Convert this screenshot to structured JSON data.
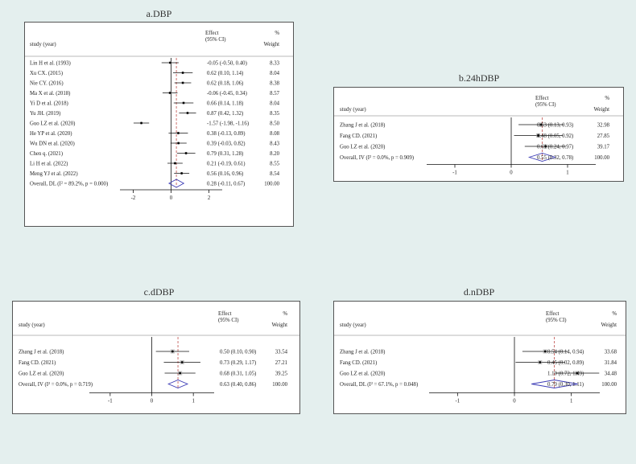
{
  "colors": {
    "background": "#e4efee",
    "plot_bg": "#ffffff",
    "ref_line": "#c0504d",
    "diamond": "#3b3bb5",
    "ci_line": "#111111"
  },
  "chart_data": [
    {
      "type": "forest",
      "title": "a.DBP",
      "header": {
        "study": "study (year)",
        "effect": "Effect",
        "ci": "(95% CI)",
        "pct": "%",
        "weight": "Weight"
      },
      "xticks": [
        -2,
        0,
        2
      ],
      "xlim": [
        -2.7,
        2.7
      ],
      "null_line": 0,
      "pooled_line": 0.28,
      "studies": [
        {
          "label": "Lin H et al. (1993)",
          "effect": -0.05,
          "lo": -0.5,
          "hi": 0.4,
          "ci_text": "-0.05 (-0.50, 0.40)",
          "weight": "8.33"
        },
        {
          "label": "Xu CX. (2015)",
          "effect": 0.62,
          "lo": 0.1,
          "hi": 1.14,
          "ci_text": "0.62 (0.10, 1.14)",
          "weight": "8.04"
        },
        {
          "label": "Nie CY. (2016)",
          "effect": 0.62,
          "lo": 0.18,
          "hi": 1.06,
          "ci_text": "0.62 (0.18, 1.06)",
          "weight": "8.38"
        },
        {
          "label": "Ma X et al. (2018)",
          "effect": -0.06,
          "lo": -0.45,
          "hi": 0.34,
          "ci_text": "-0.06 (-0.45, 0.34)",
          "weight": "8.57"
        },
        {
          "label": "Yi D et al. (2018)",
          "effect": 0.66,
          "lo": 0.14,
          "hi": 1.18,
          "ci_text": "0.66 (0.14, 1.18)",
          "weight": "8.04"
        },
        {
          "label": "Yu JH. (2019)",
          "effect": 0.87,
          "lo": 0.42,
          "hi": 1.32,
          "ci_text": "0.87 (0.42, 1.32)",
          "weight": "8.35"
        },
        {
          "label": "Guo LZ et al. (2020)",
          "effect": -1.57,
          "lo": -1.98,
          "hi": -1.16,
          "ci_text": "-1.57 (-1.98, -1.16)",
          "weight": "8.50"
        },
        {
          "label": "He YP et al. (2020)",
          "effect": 0.38,
          "lo": -0.13,
          "hi": 0.89,
          "ci_text": "0.38 (-0.13, 0.89)",
          "weight": "8.08"
        },
        {
          "label": "Wu DN et al. (2020)",
          "effect": 0.39,
          "lo": -0.03,
          "hi": 0.82,
          "ci_text": "0.39 (-0.03, 0.82)",
          "weight": "8.43"
        },
        {
          "label": "Chen q. (2021)",
          "effect": 0.79,
          "lo": 0.31,
          "hi": 1.28,
          "ci_text": "0.79 (0.31, 1.28)",
          "weight": "8.20"
        },
        {
          "label": "Li H et al. (2022)",
          "effect": 0.21,
          "lo": -0.19,
          "hi": 0.61,
          "ci_text": "0.21 (-0.19, 0.61)",
          "weight": "8.55"
        },
        {
          "label": "Meng YJ et al. (2022)",
          "effect": 0.56,
          "lo": 0.16,
          "hi": 0.96,
          "ci_text": "0.56 (0.16, 0.96)",
          "weight": "8.54"
        }
      ],
      "overall": {
        "label": "Overall, DL (I² = 89.2%, p = 0.000)",
        "effect": 0.28,
        "lo": -0.11,
        "hi": 0.67,
        "ci_text": "0.28 (-0.11, 0.67)",
        "weight": "100.00"
      }
    },
    {
      "type": "forest",
      "title": "b.24hDBP",
      "header": {
        "study": "study (year)",
        "effect": "Effect",
        "ci": "(95% CI)",
        "pct": "%",
        "weight": "Weight"
      },
      "xticks": [
        -1,
        0,
        1
      ],
      "xlim": [
        -1.5,
        1.5
      ],
      "null_line": 0,
      "pooled_line": 0.55,
      "studies": [
        {
          "label": "Zhang J et al. (2018)",
          "effect": 0.53,
          "lo": 0.13,
          "hi": 0.93,
          "ci_text": "0.53 (0.13, 0.93)",
          "weight": "32.98"
        },
        {
          "label": "Fang CD. (2021)",
          "effect": 0.48,
          "lo": 0.05,
          "hi": 0.92,
          "ci_text": "0.48 (0.05, 0.92)",
          "weight": "27.85"
        },
        {
          "label": "Guo LZ et al. (2020)",
          "effect": 0.61,
          "lo": 0.24,
          "hi": 0.97,
          "ci_text": "0.61 (0.24, 0.97)",
          "weight": "39.17"
        }
      ],
      "overall": {
        "label": "Overall, IV (I² = 0.0%, p = 0.909)",
        "effect": 0.55,
        "lo": 0.32,
        "hi": 0.78,
        "ci_text": "0.55 (0.32, 0.78)",
        "weight": "100.00"
      }
    },
    {
      "type": "forest",
      "title": "c.dDBP",
      "header": {
        "study": "study (year)",
        "effect": "Effect",
        "ci": "(95% CI)",
        "pct": "%",
        "weight": "Weight"
      },
      "xticks": [
        -1,
        0,
        1
      ],
      "xlim": [
        -1.5,
        1.5
      ],
      "null_line": 0,
      "pooled_line": 0.63,
      "studies": [
        {
          "label": "Zhang J et al. (2018)",
          "effect": 0.5,
          "lo": 0.1,
          "hi": 0.9,
          "ci_text": "0.50 (0.10, 0.90)",
          "weight": "33.54"
        },
        {
          "label": "Fang CD. (2021)",
          "effect": 0.73,
          "lo": 0.29,
          "hi": 1.17,
          "ci_text": "0.73 (0.29, 1.17)",
          "weight": "27.21"
        },
        {
          "label": "Guo LZ et al. (2020)",
          "effect": 0.68,
          "lo": 0.31,
          "hi": 1.05,
          "ci_text": "0.68 (0.31, 1.05)",
          "weight": "39.25"
        }
      ],
      "overall": {
        "label": "Overall, IV (I² = 0.0%, p = 0.719)",
        "effect": 0.63,
        "lo": 0.4,
        "hi": 0.86,
        "ci_text": "0.63 (0.40, 0.86)",
        "weight": "100.00"
      }
    },
    {
      "type": "forest",
      "title": "d.nDBP",
      "header": {
        "study": "study (year)",
        "effect": "Effect",
        "ci": "(95% CI)",
        "pct": "%",
        "weight": "Weight"
      },
      "xticks": [
        -1,
        0,
        1
      ],
      "xlim": [
        -1.5,
        1.5
      ],
      "null_line": 0,
      "pooled_line": 0.7,
      "studies": [
        {
          "label": "Zhang J et al. (2018)",
          "effect": 0.54,
          "lo": 0.14,
          "hi": 0.94,
          "ci_text": "0.54 (0.14, 0.94)",
          "weight": "33.68"
        },
        {
          "label": "Fang CD. (2021)",
          "effect": 0.45,
          "lo": 0.02,
          "hi": 0.89,
          "ci_text": "0.45 (0.02, 0.89)",
          "weight": "31.84"
        },
        {
          "label": "Guo LZ et al. (2020)",
          "effect": 1.1,
          "lo": 0.72,
          "hi": 1.49,
          "ci_text": "1.10 (0.72, 1.49)",
          "weight": "34.48"
        }
      ],
      "overall": {
        "label": "Overall, DL (I² = 67.1%, p = 0.048)",
        "effect": 0.7,
        "lo": 0.3,
        "hi": 1.11,
        "ci_text": "0.70 (0.30, 1.11)",
        "weight": "100.00"
      }
    }
  ]
}
